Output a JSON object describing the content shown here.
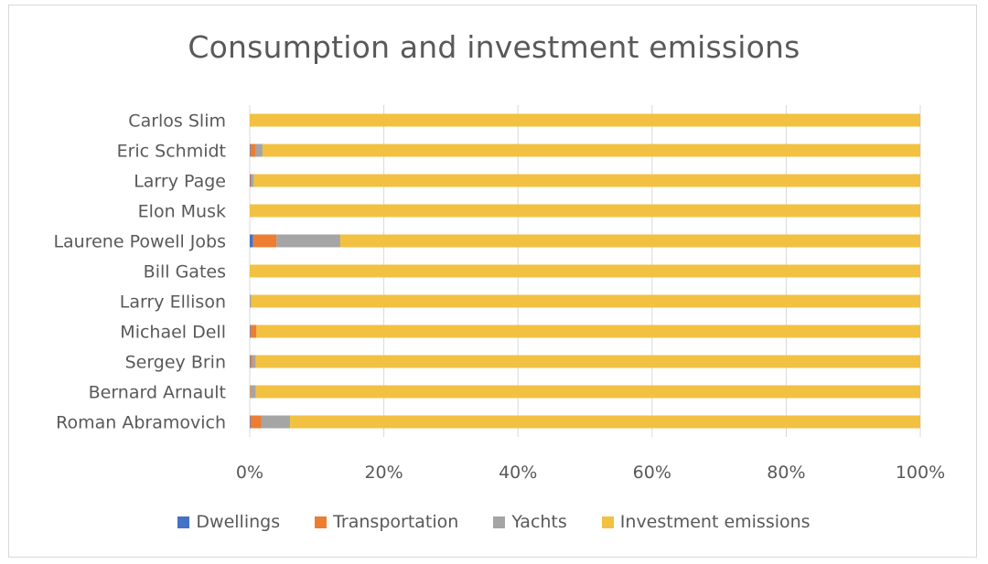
{
  "chart_data": {
    "type": "bar",
    "orientation": "horizontal",
    "stacking": "percent",
    "title": "Consumption and investment emissions",
    "categories": [
      "Carlos Slim",
      "Eric Schmidt",
      "Larry Page",
      "Elon Musk",
      "Laurene Powell Jobs",
      "Bill Gates",
      "Larry Ellison",
      "Michael Dell",
      "Sergey Brin",
      "Bernard Arnault",
      "Roman Abramovich"
    ],
    "series": [
      {
        "name": "Dwellings",
        "color": "#4472c4",
        "values": [
          0.0,
          0.1,
          0.1,
          0.0,
          0.5,
          0.0,
          0.0,
          0.1,
          0.1,
          0.0,
          0.1
        ]
      },
      {
        "name": "Transportation",
        "color": "#ed7d31",
        "values": [
          0.0,
          0.8,
          0.2,
          0.0,
          3.5,
          0.0,
          0.0,
          0.9,
          0.3,
          0.1,
          1.6
        ]
      },
      {
        "name": "Yachts",
        "color": "#a5a5a5",
        "values": [
          0.0,
          1.0,
          0.3,
          0.0,
          9.5,
          0.0,
          0.2,
          0.0,
          0.5,
          0.8,
          4.3
        ]
      },
      {
        "name": "Investment emissions",
        "color": "#f2c142",
        "values": [
          100.0,
          98.1,
          99.4,
          100.0,
          86.5,
          100.0,
          99.8,
          99.0,
          99.1,
          99.1,
          94.0
        ]
      }
    ],
    "xlim": [
      0,
      100
    ],
    "xticks": [
      "0%",
      "20%",
      "40%",
      "60%",
      "80%",
      "100%"
    ],
    "grid": "vertical",
    "legend_position": "bottom"
  }
}
